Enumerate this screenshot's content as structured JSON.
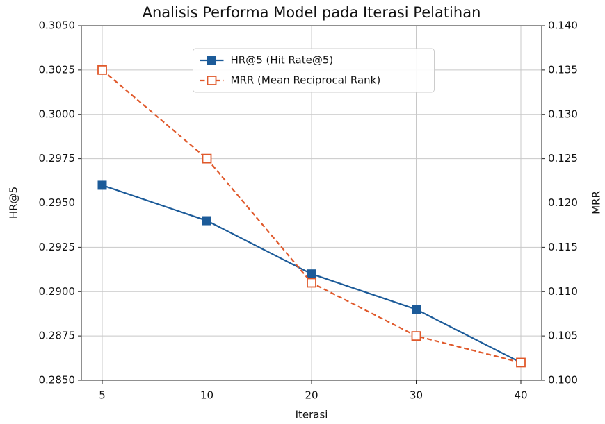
{
  "chart_data": {
    "type": "line",
    "title": "Analisis Performa Model pada Iterasi Pelatihan",
    "x_label": "Iterasi",
    "y_label": "HR@5",
    "y2_label": "MRR",
    "categories": [
      "5",
      "10",
      "20",
      "30",
      "40"
    ],
    "series": [
      {
        "name": "HR@5 (Hit Rate@5)",
        "color": "#1c5b99",
        "marker": "filled-square",
        "linestyle": "solid",
        "values": [
          0.296,
          0.294,
          0.291,
          0.289,
          0.286
        ]
      },
      {
        "name": "MRR (Mean Reciprocal Rank)",
        "color": "#e0592b",
        "marker": "hollow-square",
        "linestyle": "dashed",
        "axis": "y2",
        "values": [
          0.135,
          0.125,
          0.111,
          0.105,
          0.102
        ]
      }
    ],
    "ylim": [
      0.285,
      0.305
    ],
    "yticks": [
      {
        "value": 0.285,
        "label": "0.2850"
      },
      {
        "value": 0.2875,
        "label": "0.2875"
      },
      {
        "value": 0.29,
        "label": "0.2900"
      },
      {
        "value": 0.2925,
        "label": "0.2925"
      },
      {
        "value": 0.295,
        "label": "0.2950"
      },
      {
        "value": 0.2975,
        "label": "0.2975"
      },
      {
        "value": 0.3,
        "label": "0.3000"
      },
      {
        "value": 0.3025,
        "label": "0.3025"
      },
      {
        "value": 0.305,
        "label": "0.3050"
      }
    ],
    "y2lim": [
      0.1,
      0.14
    ],
    "y2ticks": [
      {
        "value": 0.1,
        "label": "0.100"
      },
      {
        "value": 0.105,
        "label": "0.105"
      },
      {
        "value": 0.11,
        "label": "0.110"
      },
      {
        "value": 0.115,
        "label": "0.115"
      },
      {
        "value": 0.12,
        "label": "0.120"
      },
      {
        "value": 0.125,
        "label": "0.125"
      },
      {
        "value": 0.13,
        "label": "0.130"
      },
      {
        "value": 0.135,
        "label": "0.135"
      },
      {
        "value": 0.14,
        "label": "0.140"
      }
    ],
    "grid": true,
    "legend": "upper center"
  }
}
